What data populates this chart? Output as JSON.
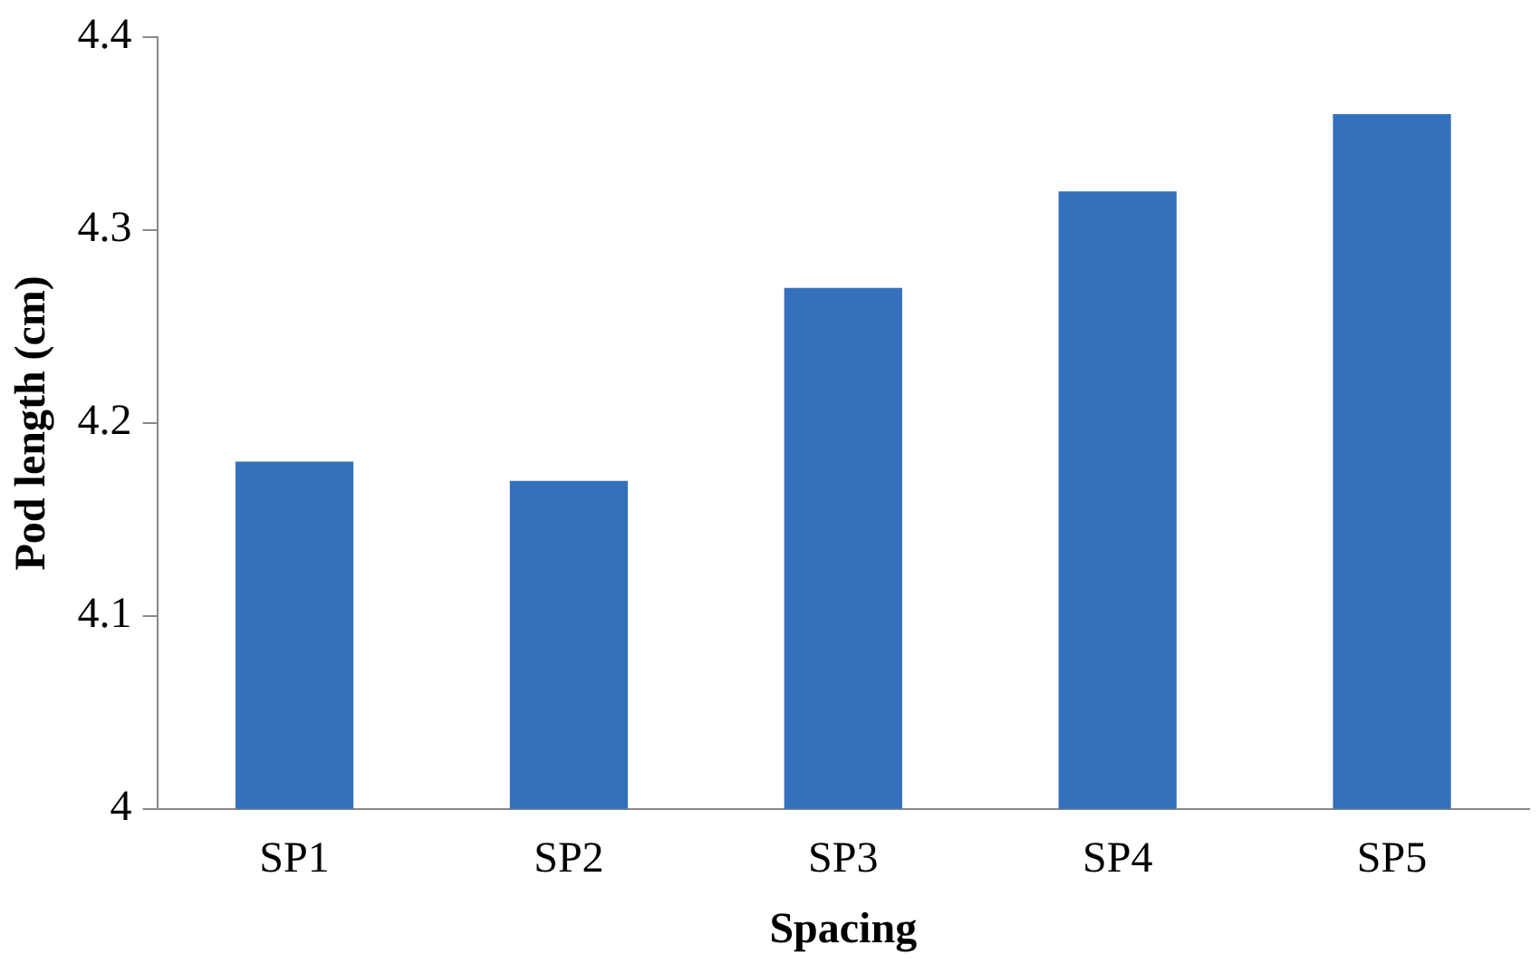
{
  "chart_data": {
    "type": "bar",
    "xlabel": "Spacing",
    "ylabel": "Pod length (cm)",
    "categories": [
      "SP1",
      "SP2",
      "SP3",
      "SP4",
      "SP5"
    ],
    "values": [
      4.18,
      4.17,
      4.27,
      4.32,
      4.36
    ],
    "color": "#3470bc",
    "ylim": [
      4,
      4.4
    ],
    "yticks": [
      4,
      4.1,
      4.2,
      4.3,
      4.4
    ],
    "grid": false,
    "legend": false
  }
}
